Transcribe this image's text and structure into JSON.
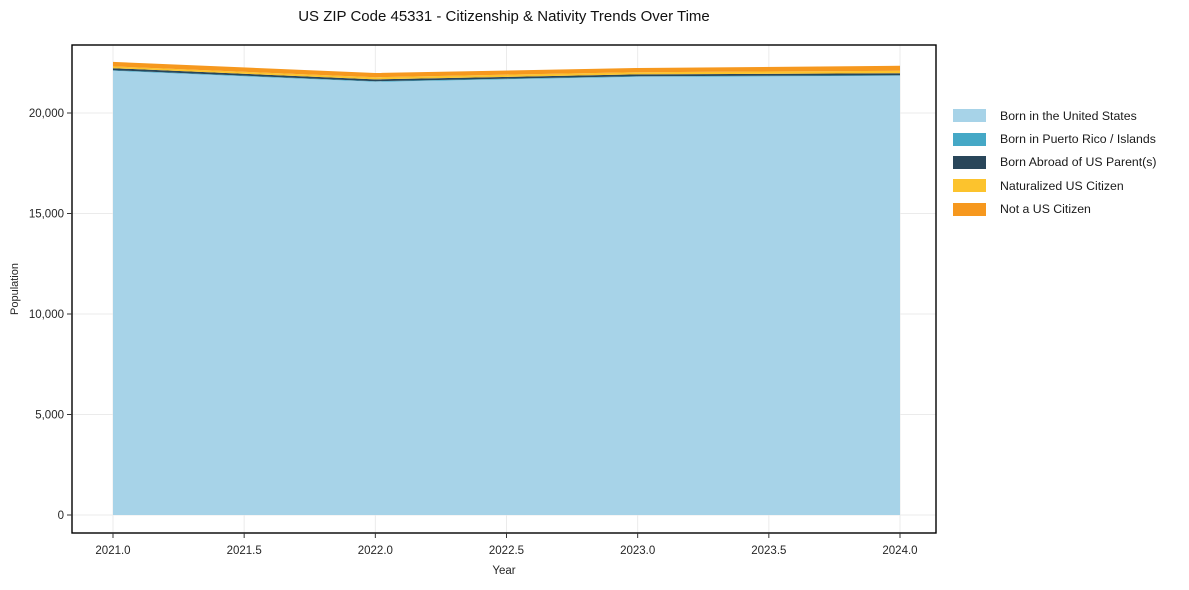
{
  "page": {
    "title": "US ZIP Code 45331 - Citizenship & Nativity Trends Over Time"
  },
  "axes": {
    "xlabel": "Year",
    "ylabel": "Population",
    "x_tick_labels": [
      "2021.0",
      "2021.5",
      "2022.0",
      "2022.5",
      "2023.0",
      "2023.5",
      "2024.0"
    ],
    "y_tick_labels": [
      "0",
      "5,000",
      "10,000",
      "15,000",
      "20,000"
    ]
  },
  "style": {
    "grid_color": "#ebebeb",
    "border_color": "#000000",
    "tick_color": "#333333",
    "background": "#ffffff"
  },
  "chart_data": {
    "type": "area",
    "stacked": true,
    "title": "US ZIP Code 45331 - Citizenship & Nativity Trends Over Time",
    "xlabel": "Year",
    "ylabel": "Population",
    "x": [
      2021,
      2022,
      2023,
      2024
    ],
    "series": [
      {
        "name": "Born in the United States",
        "color": "#a7d3e8",
        "values": [
          22100,
          21550,
          21800,
          21850
        ]
      },
      {
        "name": "Born in Puerto Rico / Islands",
        "color": "#45a8c6",
        "values": [
          30,
          30,
          30,
          30
        ]
      },
      {
        "name": "Born Abroad of US Parent(s)",
        "color": "#29465a",
        "values": [
          100,
          90,
          90,
          100
        ]
      },
      {
        "name": "Naturalized US Citizen",
        "color": "#fcc32d",
        "values": [
          90,
          110,
          110,
          120
        ]
      },
      {
        "name": "Not a US Citizen",
        "color": "#f6981e",
        "values": [
          220,
          210,
          210,
          250
        ]
      }
    ],
    "totals": [
      22540,
      21990,
      22240,
      22350
    ],
    "x_ticks": [
      2021.0,
      2021.5,
      2022.0,
      2022.5,
      2023.0,
      2023.5,
      2024.0
    ],
    "y_ticks": [
      0,
      5000,
      10000,
      15000,
      20000
    ],
    "xlim": [
      2020.84,
      2024.14
    ],
    "ylim": [
      -900,
      23400
    ],
    "grid": true,
    "legend_position": "right-outside"
  }
}
